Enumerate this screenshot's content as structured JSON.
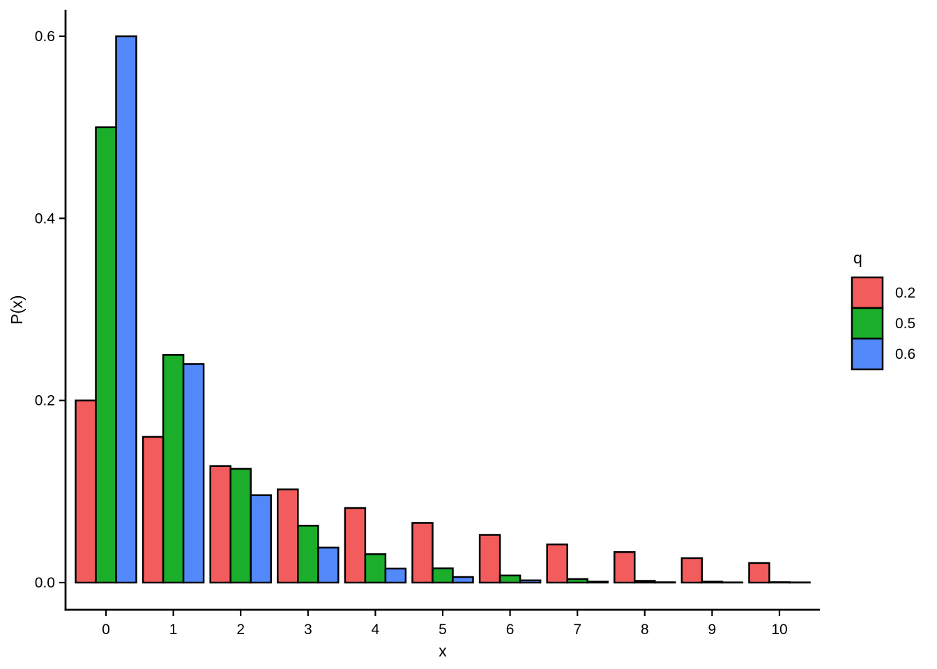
{
  "figure": {
    "background": "#ffffff",
    "axis_color": "#000000",
    "text_color": "#000000"
  },
  "chart_data": {
    "type": "bar",
    "title": "",
    "xlabel": "x",
    "ylabel": "P(x)",
    "legend_title": "q",
    "legend_position": "right",
    "grid": false,
    "bar_outline_color": "#000000",
    "categories": [
      0,
      1,
      2,
      3,
      4,
      5,
      6,
      7,
      8,
      9,
      10
    ],
    "x_tick_labels": [
      "0",
      "1",
      "2",
      "3",
      "4",
      "5",
      "6",
      "7",
      "8",
      "9",
      "10"
    ],
    "y_ticks": [
      0.0,
      0.2,
      0.4,
      0.6
    ],
    "y_tick_labels": [
      "0.0",
      "0.2",
      "0.4",
      "0.6"
    ],
    "ylim": [
      0,
      0.63
    ],
    "series": [
      {
        "name": "0.2",
        "color": "#F25C5C",
        "values": [
          0.2,
          0.16,
          0.128,
          0.1024,
          0.08192,
          0.06554,
          0.05243,
          0.04194,
          0.03355,
          0.02684,
          0.02147
        ]
      },
      {
        "name": "0.5",
        "color": "#1BAE2B",
        "values": [
          0.5,
          0.25,
          0.125,
          0.0625,
          0.03125,
          0.01563,
          0.00781,
          0.00391,
          0.00195,
          0.00098,
          0.00049
        ]
      },
      {
        "name": "0.6",
        "color": "#5288FA",
        "values": [
          0.6,
          0.24,
          0.096,
          0.0384,
          0.01536,
          0.00614,
          0.00246,
          0.00098,
          0.00039,
          0.00016,
          6e-05
        ]
      }
    ]
  }
}
